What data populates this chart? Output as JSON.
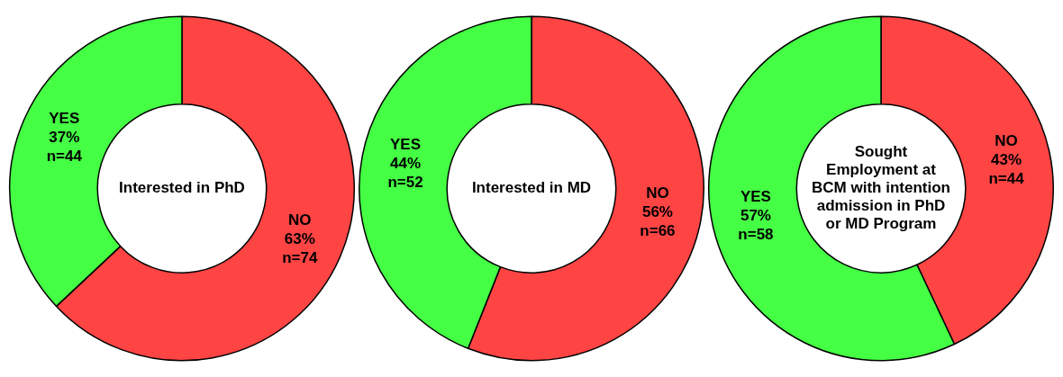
{
  "chart_data": [
    {
      "type": "donut",
      "title": "Interested in PhD",
      "categories": [
        "NO",
        "YES"
      ],
      "values": [
        63,
        37
      ],
      "colors": [
        "#ff4444",
        "#44ff44"
      ],
      "value_labels": [
        "63% n=74",
        "37% n=44"
      ],
      "legend": false
    },
    {
      "type": "donut",
      "title": "Interested in MD",
      "categories": [
        "NO",
        "YES"
      ],
      "values": [
        56,
        44
      ],
      "colors": [
        "#ff4444",
        "#44ff44"
      ],
      "value_labels": [
        "56% n=66",
        "44% n=52"
      ],
      "legend": false
    },
    {
      "type": "donut",
      "title": "Sought Employment at BCM with intention admission in PhD or MD Program",
      "categories": [
        "NO",
        "YES"
      ],
      "values": [
        43,
        57
      ],
      "colors": [
        "#ff4444",
        "#44ff44"
      ],
      "value_labels": [
        "43% n=44",
        "57% n=58"
      ],
      "legend": false
    }
  ]
}
